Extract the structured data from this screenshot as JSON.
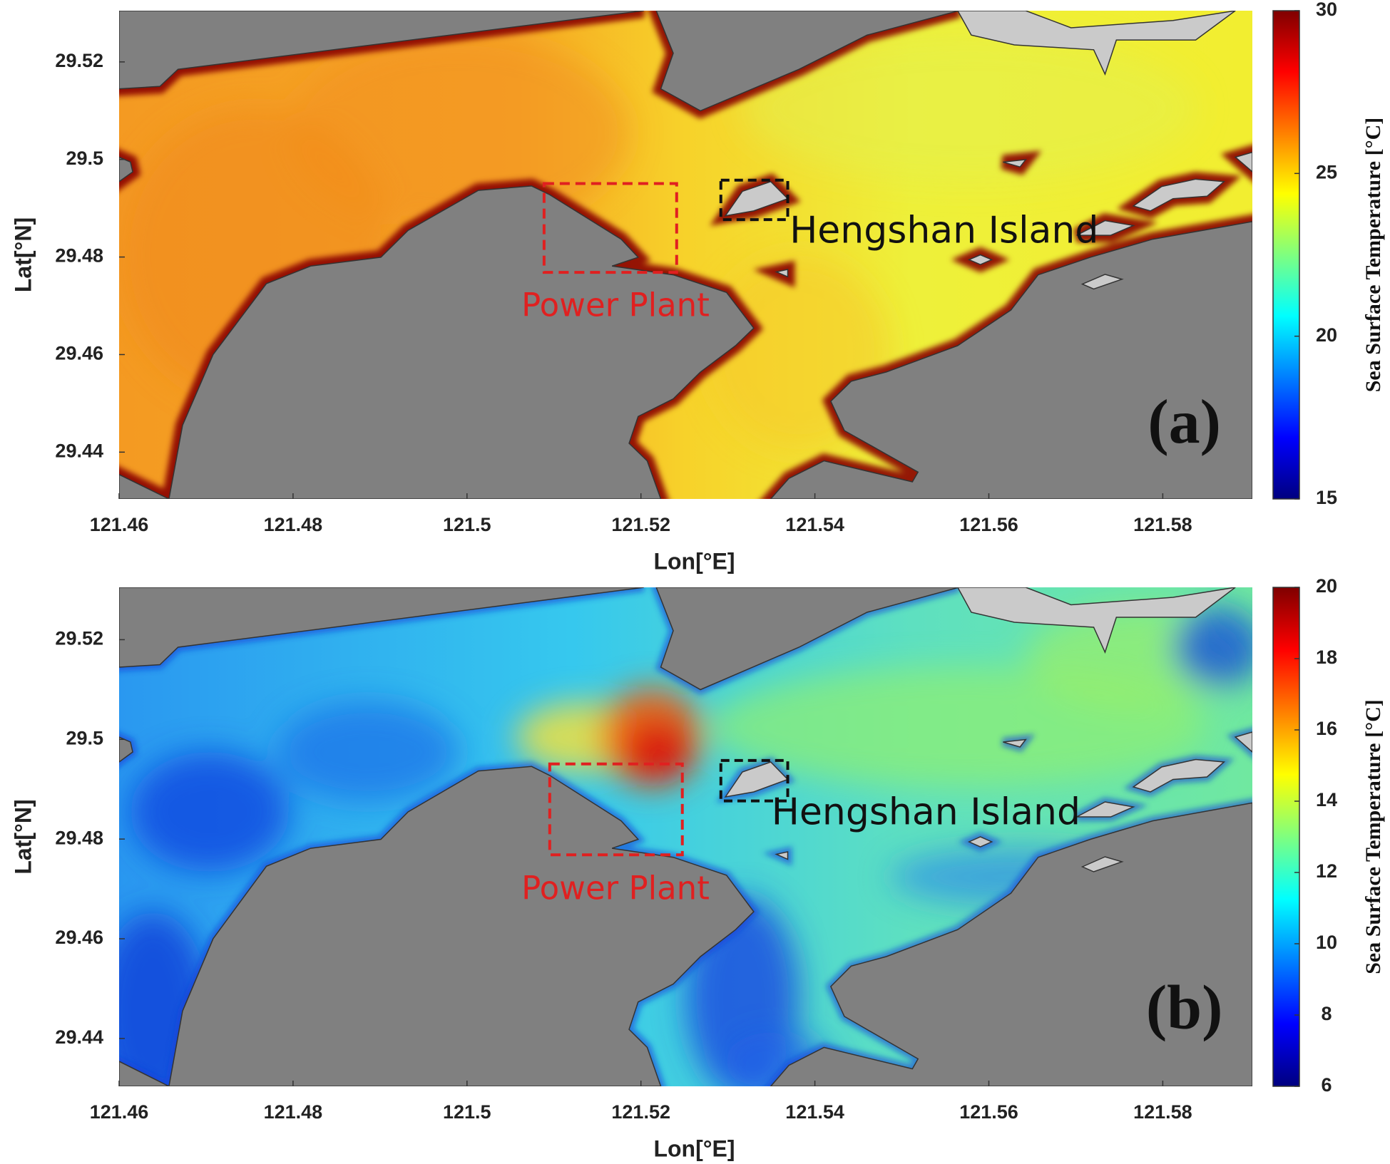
{
  "chart_data": [
    {
      "type": "map",
      "panel_label": "(a)",
      "xlabel": "Lon[°E]",
      "ylabel": "Lat[°N]",
      "xlim": [
        121.46,
        121.5903
      ],
      "ylim": [
        29.4304,
        29.5305
      ],
      "xticks": [
        121.46,
        121.48,
        121.5,
        121.52,
        121.54,
        121.56,
        121.58
      ],
      "yticks": [
        29.44,
        29.46,
        29.48,
        29.5,
        29.52
      ],
      "colormap": "jet",
      "colorbar": {
        "label": "Sea Surface Temperature [°C]",
        "lim": [
          15,
          30
        ],
        "ticks": [
          15,
          20,
          25,
          30
        ]
      },
      "annotations": [
        "Power Plant",
        "Hengshan Island"
      ]
    },
    {
      "type": "map",
      "panel_label": "(b)",
      "xlabel": "Lon[°E]",
      "ylabel": "Lat[°N]",
      "xlim": [
        121.46,
        121.5903
      ],
      "ylim": [
        29.4304,
        29.5305
      ],
      "xticks": [
        121.46,
        121.48,
        121.5,
        121.52,
        121.54,
        121.56,
        121.58
      ],
      "yticks": [
        29.44,
        29.46,
        29.48,
        29.5,
        29.52
      ],
      "colormap": "jet",
      "colorbar": {
        "label": "Sea Surface Temperature [°C]",
        "lim": [
          6,
          20
        ],
        "ticks": [
          6,
          8,
          10,
          12,
          14,
          16,
          18,
          20
        ]
      },
      "annotations": [
        "Power Plant",
        "Hengshan Island"
      ]
    }
  ]
}
